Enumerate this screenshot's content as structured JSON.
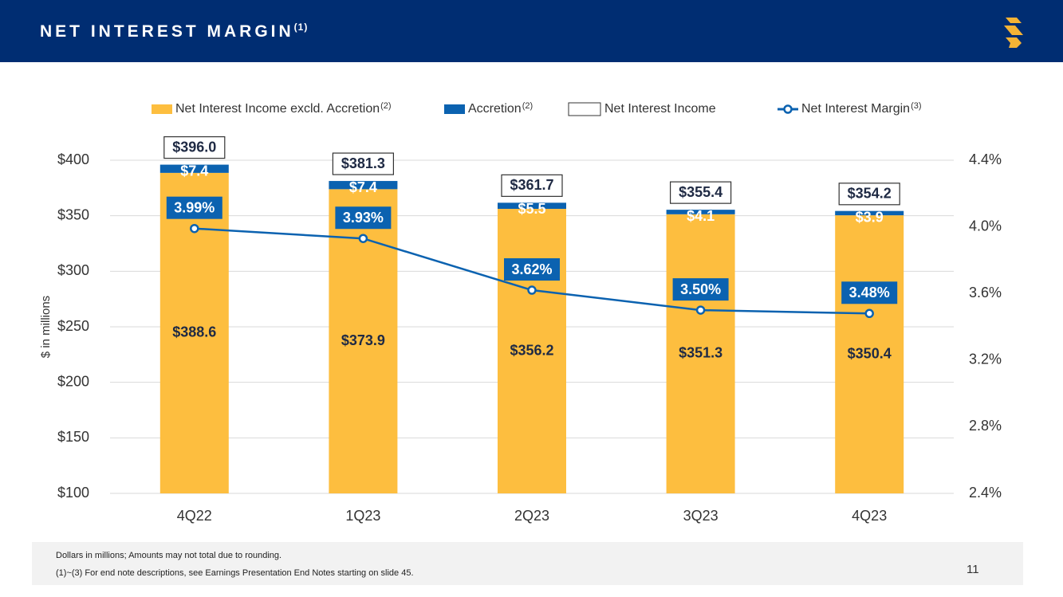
{
  "header": {
    "title": "NET INTEREST MARGIN",
    "title_note": "(1)"
  },
  "chart_data": {
    "type": "bar",
    "stacked": true,
    "categories": [
      "4Q22",
      "1Q23",
      "2Q23",
      "3Q23",
      "4Q23"
    ],
    "ylabel": "$ in millions",
    "ylim": [
      100,
      400
    ],
    "yticks": [
      {
        "value": 100,
        "label": "$100"
      },
      {
        "value": 150,
        "label": "$150"
      },
      {
        "value": 200,
        "label": "$200"
      },
      {
        "value": 250,
        "label": "$250"
      },
      {
        "value": 300,
        "label": "$300"
      },
      {
        "value": 350,
        "label": "$350"
      },
      {
        "value": 400,
        "label": "$400"
      }
    ],
    "y2lim": [
      2.4,
      4.4
    ],
    "y2ticks": [
      {
        "value": 2.4,
        "label": "2.4%"
      },
      {
        "value": 2.8,
        "label": "2.8%"
      },
      {
        "value": 3.2,
        "label": "3.2%"
      },
      {
        "value": 3.6,
        "label": "3.6%"
      },
      {
        "value": 4.0,
        "label": "4.0%"
      },
      {
        "value": 4.4,
        "label": "4.4%"
      }
    ],
    "grid": true,
    "legend": "top",
    "series": [
      {
        "name": "Net Interest Income excld. Accretion",
        "note": "(2)",
        "type": "bar",
        "color": "#FDBE3F",
        "values": [
          388.6,
          373.9,
          356.2,
          351.3,
          350.4
        ],
        "value_labels": [
          "$388.6",
          "$373.9",
          "$356.2",
          "$351.3",
          "$350.4"
        ]
      },
      {
        "name": "Accretion",
        "note": "(2)",
        "type": "bar",
        "color": "#0B62B0",
        "values": [
          7.4,
          7.4,
          5.5,
          4.1,
          3.9
        ],
        "value_labels": [
          "$7.4",
          "$7.4",
          "$5.5",
          "$4.1",
          "$3.9"
        ]
      },
      {
        "name": "Net Interest Income",
        "type": "total",
        "color": "#ffffff",
        "values": [
          396.0,
          381.3,
          361.7,
          355.4,
          354.2
        ],
        "value_labels": [
          "$396.0",
          "$381.3",
          "$361.7",
          "$355.4",
          "$354.2"
        ]
      },
      {
        "name": "Net Interest Margin",
        "note": "(3)",
        "type": "line",
        "axis": "y2",
        "color": "#0B62B0",
        "values": [
          3.99,
          3.93,
          3.62,
          3.5,
          3.48
        ],
        "value_labels": [
          "3.99%",
          "3.93%",
          "3.62%",
          "3.50%",
          "3.48%"
        ]
      }
    ]
  },
  "footer": {
    "notes": [
      "Dollars in millions; Amounts may not total due to rounding.",
      "(1)~(3)  For end note descriptions, see Earnings Presentation End Notes starting on slide 45."
    ],
    "page": "11"
  }
}
